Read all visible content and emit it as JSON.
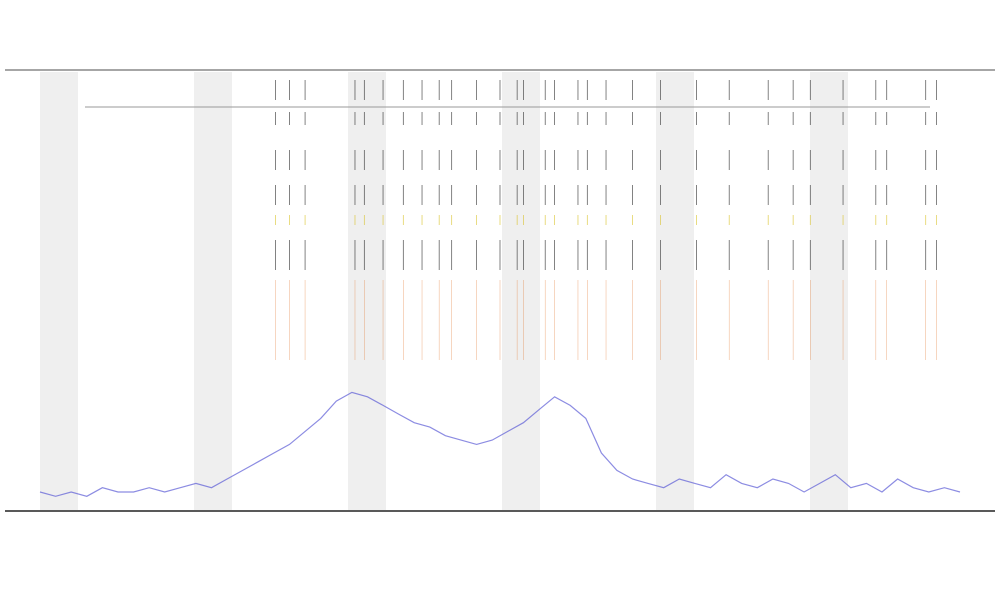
{
  "chart_data": {
    "type": "line",
    "ylim": [
      0,
      100
    ],
    "series": [
      {
        "color": "#5b5bd6",
        "values": [
          3,
          2,
          3,
          2,
          4,
          3,
          3,
          4,
          3,
          4,
          5,
          4,
          6,
          8,
          10,
          12,
          14,
          17,
          20,
          24,
          26,
          25,
          23,
          21,
          19,
          18,
          16,
          15,
          14,
          15,
          17,
          19,
          22,
          25,
          23,
          20,
          12,
          8,
          6,
          5,
          4,
          6,
          5,
          4,
          7,
          5,
          4,
          6,
          5,
          3,
          5,
          7,
          4,
          5,
          3,
          6,
          4,
          3,
          4,
          3
        ]
      }
    ],
    "events": {
      "color": "#222222",
      "accent": "#e06a1a",
      "x": [
        15.1,
        16,
        17,
        20.2,
        20.8,
        22,
        23.3,
        24.5,
        25.6,
        26.4,
        28,
        29.5,
        30.6,
        31,
        32.4,
        33,
        34.5,
        35.1,
        36.3,
        38,
        39.8,
        42.1,
        44.2,
        46.7,
        48.3,
        49.4,
        51.5,
        53.6,
        54.3,
        56.8,
        57.5
      ]
    }
  }
}
